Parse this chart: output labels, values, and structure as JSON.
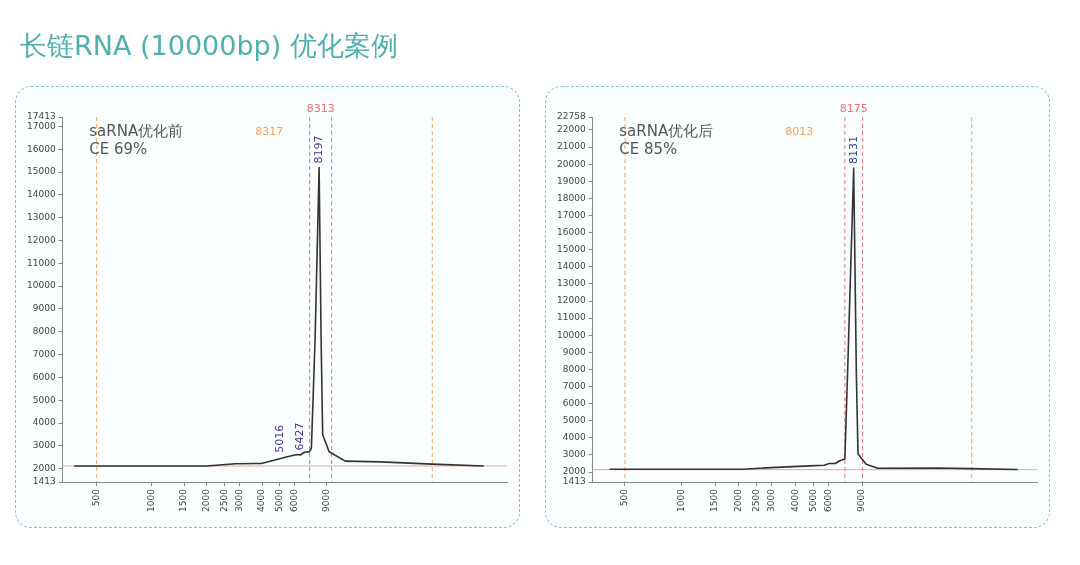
{
  "chart_data": [
    {
      "type": "line",
      "title": "长链RNA (10000bp) 优化案例",
      "log": "x",
      "grid": false,
      "legend": false,
      "x": [
        377,
        1990,
        2866,
        3970,
        5486,
        6220,
        6480,
        6810,
        7280,
        7440,
        7800,
        8197,
        8400,
        8570,
        9300,
        11400,
        17800,
        34000,
        65000
      ],
      "series": [
        {
          "color": "#333333",
          "values": [
            2120,
            2120,
            2220,
            2230,
            2520,
            2620,
            2600,
            2720,
            2750,
            2900,
            7790,
            15200,
            7790,
            3490,
            2740,
            2330,
            2300,
            2200,
            2120
          ]
        }
      ],
      "xlim": [
        326,
        87000
      ],
      "xticks": [
        500,
        1000,
        1500,
        2000,
        2500,
        3000,
        4000,
        5000,
        6000,
        9000
      ],
      "ylim": [
        1413,
        17413
      ],
      "yticks": [
        1413,
        2000,
        3000,
        4000,
        5000,
        6000,
        7000,
        8000,
        9000,
        10000,
        11000,
        12000,
        13000,
        14000,
        15000,
        16000,
        17000,
        17413
      ],
      "ref_lines": [
        {
          "axis": "y",
          "value": 2120,
          "color": "#f0a0a0"
        },
        {
          "axis": "x",
          "value": 500,
          "color": "#f5a05a",
          "line_style": "dashed"
        },
        {
          "axis": "x",
          "value": 34000,
          "color": "#f5a05a",
          "line_style": "dashed"
        },
        {
          "axis": "x",
          "value": 7280,
          "color": "#e8707a",
          "line_style": "dashed"
        },
        {
          "axis": "x",
          "value": 9600,
          "color": "#e8707a",
          "line_style": "dashed"
        }
      ],
      "annotations": [
        "saRNA优化前",
        "CE 69%",
        "8317",
        "8313",
        {
          "text": "8197",
          "x": 8197,
          "y": 15200
        },
        {
          "text": "5016",
          "x": 5016,
          "y": 2520
        },
        {
          "text": "6427",
          "x": 6427,
          "y": 2620
        }
      ]
    },
    {
      "type": "line",
      "log": "x",
      "grid": false,
      "legend": false,
      "x": [
        414,
        2080,
        2960,
        4750,
        5680,
        6030,
        6500,
        6870,
        7300,
        7540,
        8131,
        8400,
        8570,
        9470,
        10900,
        22800,
        34000,
        60000
      ],
      "series": [
        {
          "color": "#333333",
          "values": [
            2160,
            2160,
            2260,
            2360,
            2400,
            2500,
            2500,
            2660,
            2760,
            7680,
            19770,
            7680,
            3060,
            2460,
            2220,
            2240,
            2200,
            2150
          ]
        }
      ],
      "xlim": [
        337,
        76000
      ],
      "xticks": [
        500,
        1000,
        1500,
        2000,
        2500,
        3000,
        4000,
        5000,
        6000,
        9000
      ],
      "ylim": [
        1413,
        22758
      ],
      "yticks": [
        1413,
        2000,
        3000,
        4000,
        5000,
        6000,
        7000,
        8000,
        9000,
        10000,
        11000,
        12000,
        13000,
        14000,
        15000,
        16000,
        17000,
        18000,
        19000,
        20000,
        21000,
        22000,
        22758
      ],
      "ref_lines": [
        {
          "axis": "y",
          "value": 2140,
          "color": "#f0a0a0"
        },
        {
          "axis": "x",
          "value": 500,
          "color": "#f5a05a",
          "line_style": "dashed"
        },
        {
          "axis": "x",
          "value": 34300,
          "color": "#f5a05a",
          "line_style": "dashed"
        },
        {
          "axis": "x",
          "value": 7300,
          "color": "#e8707a",
          "line_style": "dashed"
        },
        {
          "axis": "x",
          "value": 9060,
          "color": "#e8707a",
          "line_style": "dashed"
        }
      ],
      "annotations": [
        "saRNA优化后",
        "CE 85%",
        "8013",
        "8175",
        {
          "text": "8131",
          "x": 8131,
          "y": 19770
        }
      ]
    }
  ]
}
